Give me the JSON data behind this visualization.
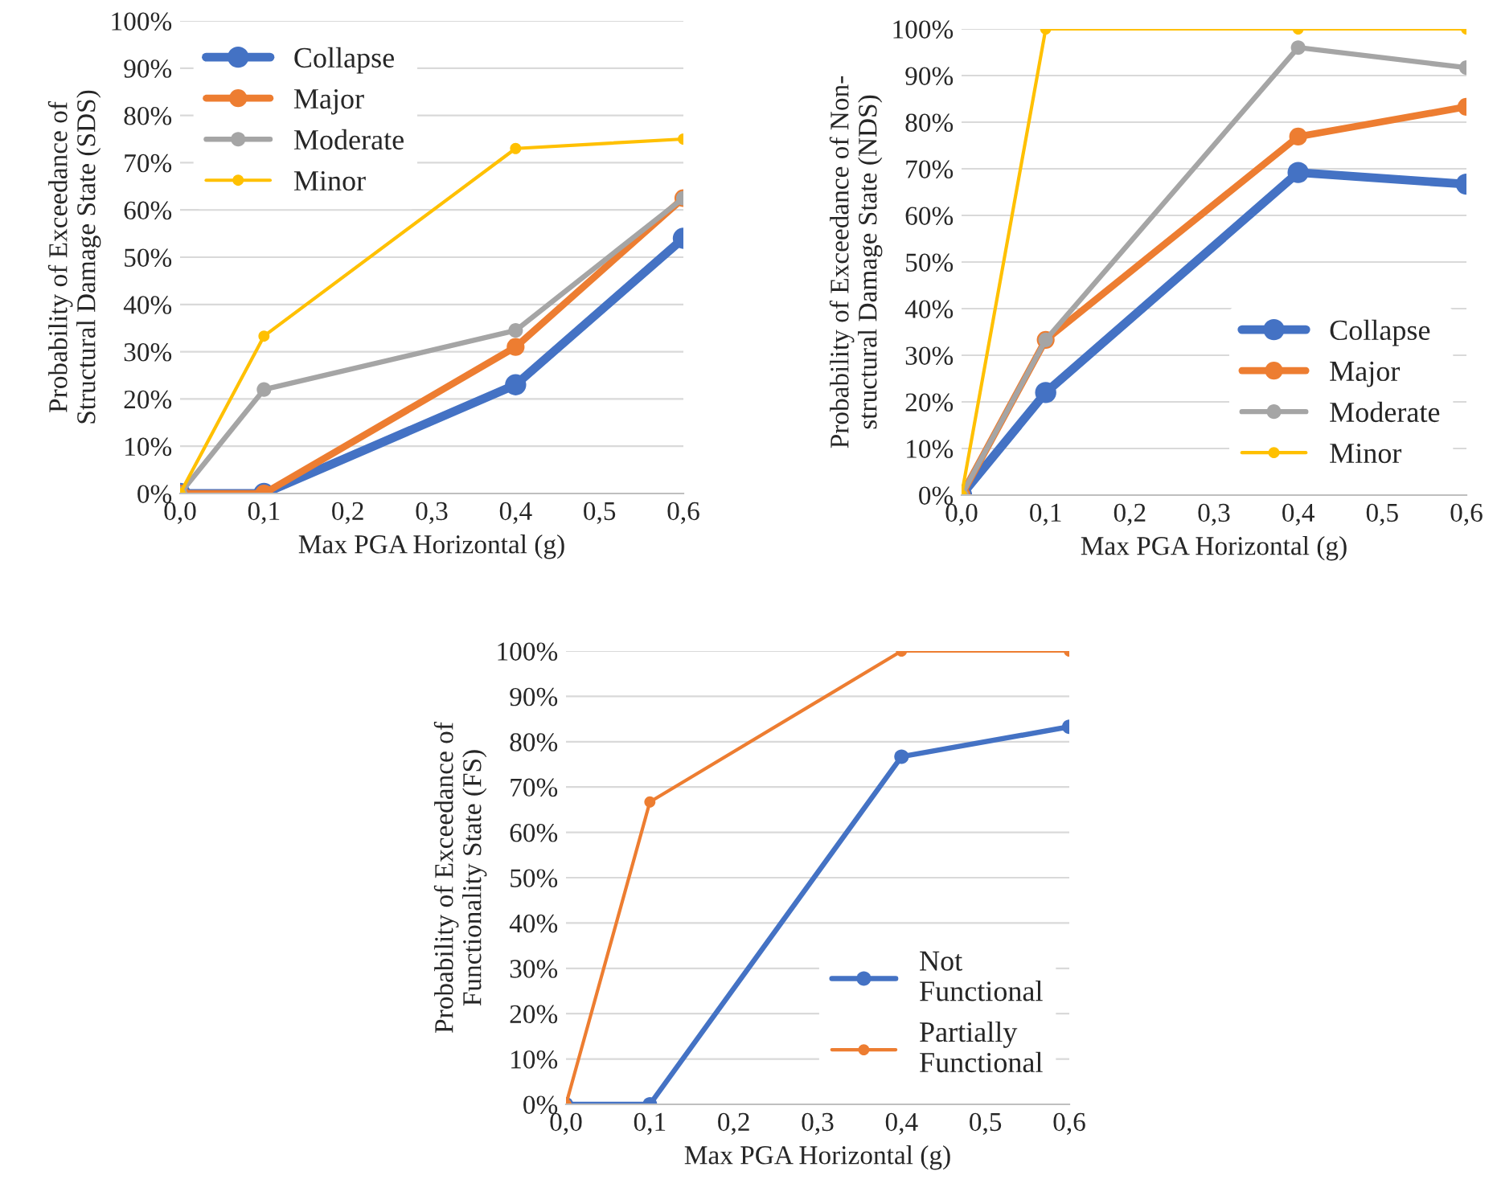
{
  "chart_data": [
    {
      "type": "line",
      "xlabel": "Max PGA Horizontal (g)",
      "ylabel": "Probability of Exceedance of\nStructural Damage State (SDS)",
      "x": [
        0,
        0.1,
        0.4,
        0.6
      ],
      "xlim": [
        0,
        0.6
      ],
      "xticks": [
        {
          "value": 0,
          "label": "0,0"
        },
        {
          "value": 0.1,
          "label": "0,1"
        },
        {
          "value": 0.2,
          "label": "0,2"
        },
        {
          "value": 0.3,
          "label": "0,3"
        },
        {
          "value": 0.4,
          "label": "0,4"
        },
        {
          "value": 0.5,
          "label": "0,5"
        },
        {
          "value": 0.6,
          "label": "0,6"
        }
      ],
      "ylim": [
        0,
        100
      ],
      "yticks": [
        {
          "value": 0,
          "label": "0%"
        },
        {
          "value": 10,
          "label": "10%"
        },
        {
          "value": 20,
          "label": "20%"
        },
        {
          "value": 30,
          "label": "30%"
        },
        {
          "value": 40,
          "label": "40%"
        },
        {
          "value": 50,
          "label": "50%"
        },
        {
          "value": 60,
          "label": "60%"
        },
        {
          "value": 70,
          "label": "70%"
        },
        {
          "value": 80,
          "label": "80%"
        },
        {
          "value": 90,
          "label": "90%"
        },
        {
          "value": 100,
          "label": "100%"
        }
      ],
      "grid": "y",
      "legend": "top left",
      "marker": "circle",
      "line_style": "solid",
      "series": [
        {
          "name": "Collapse",
          "color": "#4472c4",
          "values": [
            0,
            0,
            23,
            54
          ]
        },
        {
          "name": "Major",
          "color": "#ed7d31",
          "values": [
            0,
            0,
            31,
            62.5
          ]
        },
        {
          "name": "Moderate",
          "color": "#a5a5a5",
          "values": [
            0,
            22,
            34.5,
            62.5
          ]
        },
        {
          "name": "Minor",
          "color": "#ffc000",
          "values": [
            0,
            33.3,
            73,
            75
          ]
        }
      ]
    },
    {
      "type": "line",
      "xlabel": "Max PGA Horizontal (g)",
      "ylabel": "Probability of Exceedance of Non-\nstructural Damage State (NDS)",
      "x": [
        0,
        0.1,
        0.4,
        0.6
      ],
      "xlim": [
        0,
        0.6
      ],
      "xticks": [
        {
          "value": 0,
          "label": "0,0"
        },
        {
          "value": 0.1,
          "label": "0,1"
        },
        {
          "value": 0.2,
          "label": "0,2"
        },
        {
          "value": 0.3,
          "label": "0,3"
        },
        {
          "value": 0.4,
          "label": "0,4"
        },
        {
          "value": 0.5,
          "label": "0,5"
        },
        {
          "value": 0.6,
          "label": "0,6"
        }
      ],
      "ylim": [
        0,
        100
      ],
      "yticks": [
        {
          "value": 0,
          "label": "0%"
        },
        {
          "value": 10,
          "label": "10%"
        },
        {
          "value": 20,
          "label": "20%"
        },
        {
          "value": 30,
          "label": "30%"
        },
        {
          "value": 40,
          "label": "40%"
        },
        {
          "value": 50,
          "label": "50%"
        },
        {
          "value": 60,
          "label": "60%"
        },
        {
          "value": 70,
          "label": "70%"
        },
        {
          "value": 80,
          "label": "80%"
        },
        {
          "value": 90,
          "label": "90%"
        },
        {
          "value": 100,
          "label": "100%"
        }
      ],
      "grid": "y",
      "legend": "bottom right",
      "marker": "circle",
      "line_style": "solid",
      "series": [
        {
          "name": "Collapse",
          "color": "#4472c4",
          "values": [
            0,
            22,
            69.2,
            66.7
          ]
        },
        {
          "name": "Major",
          "color": "#ed7d31",
          "values": [
            0,
            33.3,
            76.9,
            83.3
          ]
        },
        {
          "name": "Moderate",
          "color": "#a5a5a5",
          "values": [
            0,
            33.3,
            96,
            91.7
          ]
        },
        {
          "name": "Minor",
          "color": "#ffc000",
          "values": [
            0,
            100,
            100,
            100
          ]
        }
      ]
    },
    {
      "type": "line",
      "xlabel": "Max PGA Horizontal (g)",
      "ylabel": "Probability of Exceedance of\nFunctionality State (FS)",
      "x": [
        0,
        0.1,
        0.4,
        0.6
      ],
      "xlim": [
        0,
        0.6
      ],
      "xticks": [
        {
          "value": 0,
          "label": "0,0"
        },
        {
          "value": 0.1,
          "label": "0,1"
        },
        {
          "value": 0.2,
          "label": "0,2"
        },
        {
          "value": 0.3,
          "label": "0,3"
        },
        {
          "value": 0.4,
          "label": "0,4"
        },
        {
          "value": 0.5,
          "label": "0,5"
        },
        {
          "value": 0.6,
          "label": "0,6"
        }
      ],
      "ylim": [
        0,
        100
      ],
      "yticks": [
        {
          "value": 0,
          "label": "0%"
        },
        {
          "value": 10,
          "label": "10%"
        },
        {
          "value": 20,
          "label": "20%"
        },
        {
          "value": 30,
          "label": "30%"
        },
        {
          "value": 40,
          "label": "40%"
        },
        {
          "value": 50,
          "label": "50%"
        },
        {
          "value": 60,
          "label": "60%"
        },
        {
          "value": 70,
          "label": "70%"
        },
        {
          "value": 80,
          "label": "80%"
        },
        {
          "value": 90,
          "label": "90%"
        },
        {
          "value": 100,
          "label": "100%"
        }
      ],
      "grid": "y",
      "legend": "bottom right",
      "marker": "circle",
      "line_style": "solid",
      "series": [
        {
          "name": "Not\nFunctional",
          "color": "#4472c4",
          "values": [
            0,
            0,
            76.7,
            83.3
          ]
        },
        {
          "name": "Partially\nFunctional",
          "color": "#ed7d31",
          "values": [
            0,
            66.7,
            100,
            100
          ]
        }
      ]
    }
  ]
}
